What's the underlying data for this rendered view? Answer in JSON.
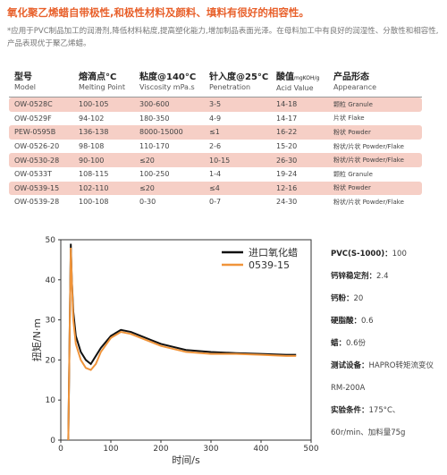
{
  "header": {
    "title": "氧化聚乙烯蜡自带极性,和极性材料及颜料、填料有很好的相容性。",
    "description": "*应用于PVC制品加工的润滑剂,降低材料粘度,提高塑化能力,增加制品表面光泽。在母料加工中有良好的润湿性、分散性和相容性,产品表现优于聚乙烯蜡。"
  },
  "table": {
    "columns": [
      {
        "cn": "型号",
        "en": "Model"
      },
      {
        "cn": "熔滴点°C",
        "en": "Melting Point"
      },
      {
        "cn": "粘度@140°C",
        "en": "Viscosity mPa.s"
      },
      {
        "cn": "针入度@25°C",
        "en": "Penetration"
      },
      {
        "cn": "酸值",
        "unit": "mgKOH/g",
        "en": "Acid Value"
      },
      {
        "cn": "产品形态",
        "en": "Appearance"
      }
    ],
    "rows": [
      [
        "OW-0528C",
        "100-105",
        "300-600",
        "3-5",
        "14-18",
        "颗粒 Granule"
      ],
      [
        "OW-0529F",
        "94-102",
        "180-350",
        "4-9",
        "14-17",
        "片状 Flake"
      ],
      [
        "PEW-0595B",
        "136-138",
        "8000-15000",
        "≤1",
        "16-22",
        "粉状 Powder"
      ],
      [
        "OW-0526-20",
        "98-108",
        "110-170",
        "2-6",
        "15-20",
        "粉状/片状 Powder/Flake"
      ],
      [
        "OW-0530-28",
        "90-100",
        "≤20",
        "10-15",
        "26-30",
        "粉状/片状 Powder/Flake"
      ],
      [
        "OW-0533T",
        "108-115",
        "100-250",
        "1-4",
        "19-24",
        "颗粒 Granule"
      ],
      [
        "OW-0539-15",
        "102-110",
        "≤20",
        "≤4",
        "12-16",
        "粉状 Powder"
      ],
      [
        "OW-0539-28",
        "100-108",
        "0-30",
        "0-7",
        "24-30",
        "粉状/片状 Powder/Flake"
      ]
    ]
  },
  "chart_data": {
    "type": "line",
    "x_label": "时间/s",
    "y_label": "扭矩/N·m",
    "x": [
      15,
      18,
      20,
      22,
      25,
      30,
      40,
      50,
      60,
      70,
      80,
      100,
      120,
      140,
      160,
      180,
      200,
      250,
      300,
      350,
      400,
      450,
      470
    ],
    "series": [
      {
        "name": "进口氧化蜡",
        "color": "#111111",
        "values": [
          0,
          30,
          49,
          40,
          32,
          26,
          22,
          20,
          19,
          21,
          23,
          26,
          27.5,
          27,
          26,
          25,
          24,
          22.5,
          22,
          21.7,
          21.5,
          21.3,
          21.3
        ]
      },
      {
        "name": "0539-15",
        "color": "#f0943a",
        "values": [
          0,
          30,
          48,
          40,
          30,
          24,
          20,
          18,
          17.5,
          19,
          22,
          25.5,
          27,
          26.5,
          25.5,
          24.5,
          23.5,
          22,
          21.5,
          21.5,
          21.3,
          21,
          21
        ]
      }
    ],
    "xlim": [
      0,
      500
    ],
    "xticks": [
      0,
      100,
      200,
      300,
      400,
      500
    ],
    "ylim": [
      0,
      50
    ],
    "yticks": [
      0,
      10,
      20,
      30,
      40,
      50
    ],
    "legend": "upper right"
  },
  "notes": [
    {
      "label": "PVC(S-1000)：",
      "value": "100"
    },
    {
      "label": "钙锌稳定剂：",
      "value": "2.4"
    },
    {
      "label": "钙粉：",
      "value": "20"
    },
    {
      "label": "硬脂酸：",
      "value": "0.6"
    },
    {
      "label": "蜡：",
      "value": "0.6份"
    },
    {
      "label": "测试设备：",
      "value": "HAPRO转矩流变仪RM-200A"
    },
    {
      "label": "实验条件：",
      "value": "175°C、60r/min、加料量75g"
    }
  ]
}
